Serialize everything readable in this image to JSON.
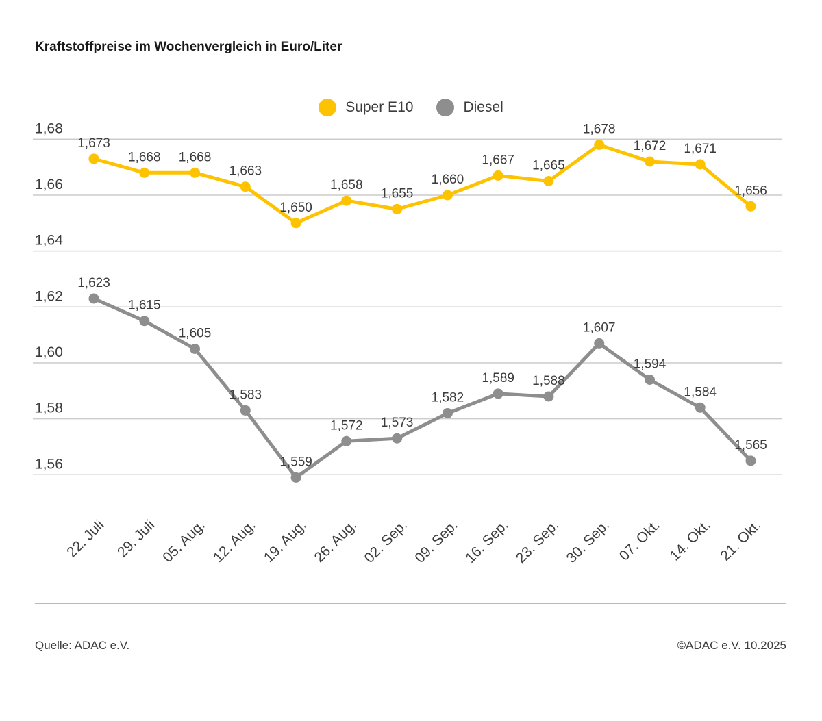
{
  "page": {
    "title": "Kraftstoffpreise im Wochenvergleich in Euro/Liter",
    "source_left": "Quelle: ADAC e.V.",
    "source_right": "©ADAC e.V. 10.2025"
  },
  "chart_data": {
    "type": "line",
    "title": "Kraftstoffpreise im Wochenvergleich in Euro/Liter",
    "categories": [
      "22. Juli",
      "29. Juli",
      "05. Aug.",
      "12. Aug.",
      "19. Aug.",
      "26. Aug.",
      "02. Sep.",
      "09. Sep.",
      "16. Sep.",
      "23. Sep.",
      "30. Sep.",
      "07. Okt.",
      "14. Okt.",
      "21. Okt."
    ],
    "series": [
      {
        "name": "Super E10",
        "color": "#fdc300",
        "values": [
          1.673,
          1.668,
          1.668,
          1.663,
          1.65,
          1.658,
          1.655,
          1.66,
          1.667,
          1.665,
          1.678,
          1.672,
          1.671,
          1.656
        ]
      },
      {
        "name": "Diesel",
        "color": "#8e8e8e",
        "values": [
          1.623,
          1.615,
          1.605,
          1.583,
          1.559,
          1.572,
          1.573,
          1.582,
          1.589,
          1.588,
          1.607,
          1.594,
          1.584,
          1.565
        ]
      }
    ],
    "y_ticks": [
      1.68,
      1.66,
      1.64,
      1.62,
      1.6,
      1.58,
      1.56
    ],
    "ylim": [
      1.55,
      1.69
    ],
    "xlabel": "",
    "ylabel": "",
    "grid": true,
    "legend_position": "top-center",
    "decimal_separator": ","
  },
  "colors": {
    "grid": "#cccccc",
    "axis_text": "#3c3c3c",
    "point_label": "#3c3c3c"
  }
}
